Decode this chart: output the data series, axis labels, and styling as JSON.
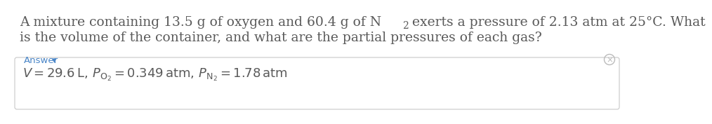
{
  "background_color": "#ffffff",
  "question_color": "#5a5a5a",
  "answer_label": "Answer",
  "answer_arrow": "▾",
  "answer_color": "#4a86c8",
  "box_edge_color": "#c8c8c8",
  "box_fill_color": "#ffffff",
  "circle_x_color": "#bbbbbb",
  "answer_text_color": "#5a5a5a",
  "font_size_question": 13.5,
  "font_size_answer": 13.0,
  "font_size_answer_label": 9.5,
  "q_line1_part1": "A mixture containing 13.5 g of oxygen and 60.4 g of N",
  "q_line1_sub": "2",
  "q_line1_part2": " exerts a pressure of 2.13 atm at 25°C. What",
  "q_line2": "is the volume of the container, and what are the partial pressures of each gas?"
}
